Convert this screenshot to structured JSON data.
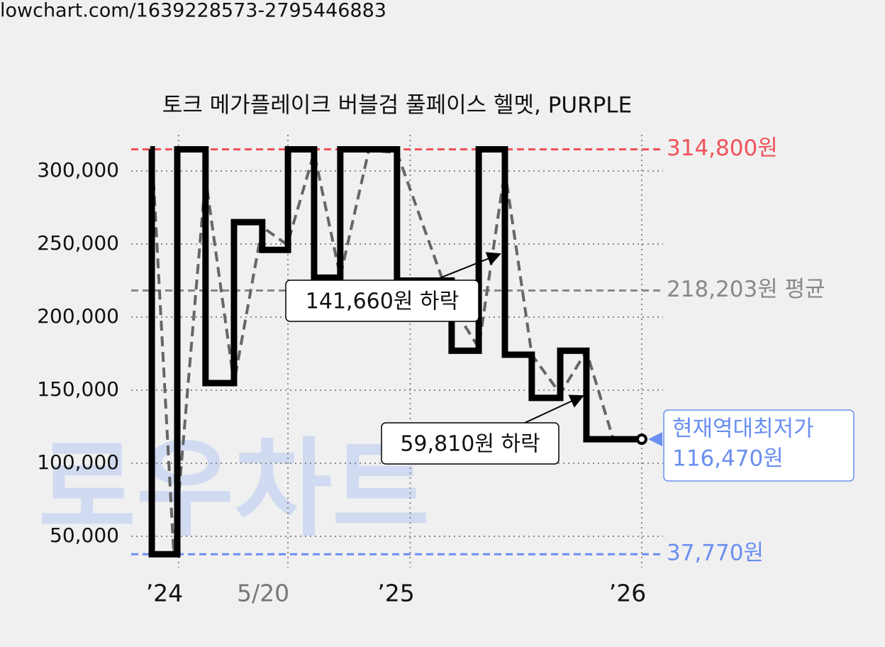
{
  "header": {
    "url": "lowchart.com/1639228573-2795446883"
  },
  "chart_data": {
    "type": "step-line",
    "title": "토크 메가플레이크 버블검 풀페이스 헬멧, PURPLE",
    "watermark": "로우차트",
    "xlim": [
      2023.795,
      2026.092
    ],
    "xticks": [
      {
        "value": 2024,
        "label": "’24"
      },
      {
        "value": 2024.472,
        "label": "5/20"
      },
      {
        "value": 2025,
        "label": "’25"
      },
      {
        "value": 2026,
        "label": "’26"
      }
    ],
    "ylim": [
      28640,
      324760
    ],
    "yticks": [
      {
        "value": 50000,
        "label": "50,000"
      },
      {
        "value": 100000,
        "label": "100,000"
      },
      {
        "value": 150000,
        "label": "150,000"
      },
      {
        "value": 200000,
        "label": "200,000"
      },
      {
        "value": 250000,
        "label": "250,000"
      },
      {
        "value": 300000,
        "label": "300,000"
      }
    ],
    "grid": true,
    "series": [
      {
        "color": "#000000",
        "step": true,
        "x": [
          2023.877,
          2023.884,
          2023.994,
          2024.116,
          2024.239,
          2024.361,
          2024.472,
          2024.585,
          2024.698,
          2024.943,
          2025.179,
          2025.296,
          2025.409,
          2025.525,
          2025.648,
          2025.761,
          2026.0
        ],
        "values": [
          314800,
          37770,
          314800,
          154850,
          265000,
          246000,
          314800,
          227000,
          314800,
          225000,
          177000,
          314800,
          174300,
          144700,
          177000,
          116470,
          116470
        ]
      },
      {
        "color": "#666666",
        "step": false,
        "x": [
          2023.884,
          2023.979,
          2024.116,
          2024.239,
          2024.361,
          2024.469,
          2024.585,
          2024.698,
          2024.821,
          2024.943,
          2025.179,
          2025.296,
          2025.409,
          2025.525,
          2025.648,
          2025.761,
          2025.877,
          2026.0
        ],
        "values": [
          314800,
          37770,
          295600,
          154850,
          261700,
          249500,
          312600,
          227700,
          314100,
          312600,
          208300,
          179100,
          300500,
          174300,
          147600,
          176700,
          116500,
          116470
        ]
      }
    ],
    "reference_lines": [
      {
        "value": 314800,
        "label": "314,800원",
        "color": "#f0525a"
      },
      {
        "value": 218203,
        "label": "218,203원 평균",
        "color": "#888888"
      },
      {
        "value": 37770,
        "label": "37,770원",
        "color": "#6a8ff0"
      }
    ],
    "annotations": [
      {
        "value": 141660,
        "label": "141,660원 하락"
      },
      {
        "value": 59810,
        "label": "59,810원 하락"
      }
    ],
    "current": {
      "label": "현재역대최저가",
      "value": 116470,
      "value_label": "116,470원",
      "color": "#6a8ff0"
    }
  }
}
